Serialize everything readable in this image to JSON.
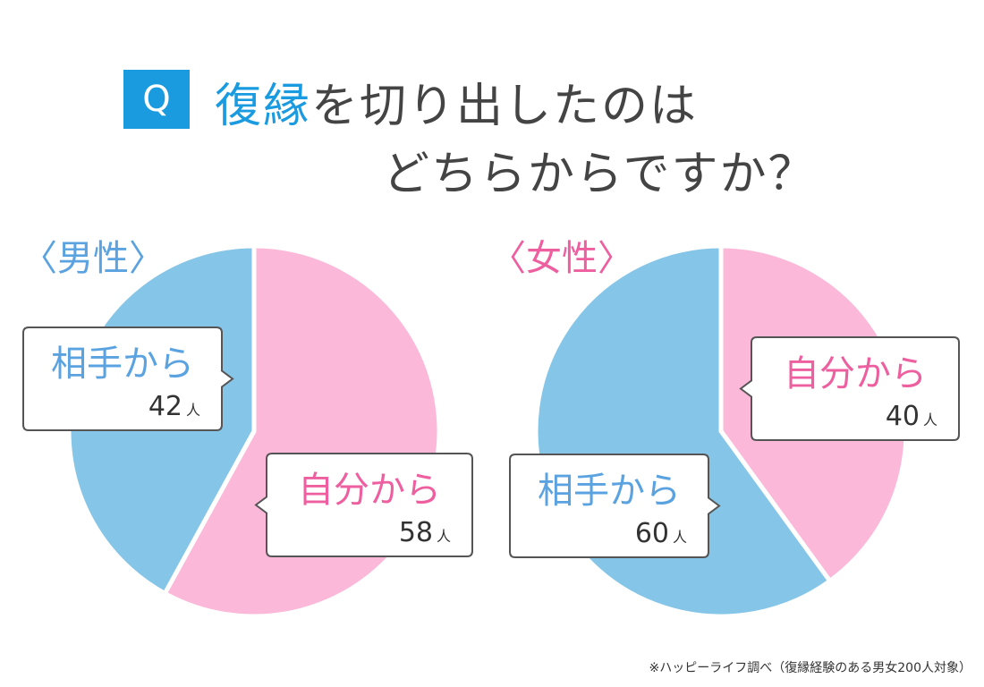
{
  "question": {
    "badge": "Q",
    "line1_highlight": "復縁",
    "line1_rest": "を切り出したのは",
    "line2": "どちらからですか？"
  },
  "colors": {
    "accent_blue": "#1a9be0",
    "slice_blue": "#85c5e7",
    "slice_pink": "#fbb8d8",
    "label_blue": "#5ba3e0",
    "label_pink": "#ee5fa0"
  },
  "chart_data": [
    {
      "type": "pie",
      "title": "〈男性〉",
      "unit": "人",
      "slices": [
        {
          "label": "自分から",
          "value": 58,
          "color": "#fbb8d8"
        },
        {
          "label": "相手から",
          "value": 42,
          "color": "#85c5e7"
        }
      ]
    },
    {
      "type": "pie",
      "title": "〈女性〉",
      "unit": "人",
      "slices": [
        {
          "label": "自分から",
          "value": 40,
          "color": "#fbb8d8"
        },
        {
          "label": "相手から",
          "value": 60,
          "color": "#85c5e7"
        }
      ]
    }
  ],
  "source": "※ハッピーライフ調べ（復縁経験のある男女200人対象）"
}
